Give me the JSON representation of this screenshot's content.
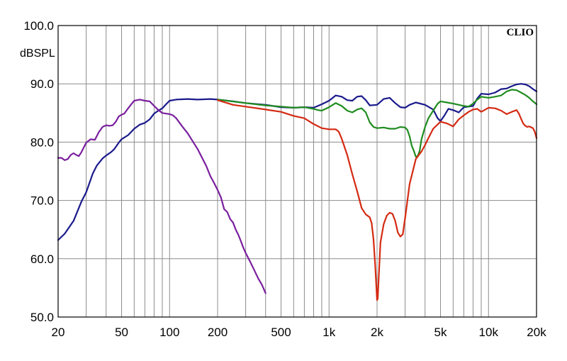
{
  "chart_data": {
    "type": "line",
    "title": "",
    "brand": "CLIO",
    "xlabel": "",
    "ylabel": "dBSPL",
    "x_scale": "log",
    "xlim": [
      20,
      20000
    ],
    "ylim": [
      50,
      100
    ],
    "grid": true,
    "legend": "none",
    "x_ticks": [
      {
        "value": 20,
        "label": "20"
      },
      {
        "value": 50,
        "label": "50"
      },
      {
        "value": 100,
        "label": "100"
      },
      {
        "value": 200,
        "label": "200"
      },
      {
        "value": 500,
        "label": "500"
      },
      {
        "value": 1000,
        "label": "1k"
      },
      {
        "value": 2000,
        "label": "2k"
      },
      {
        "value": 5000,
        "label": "5k"
      },
      {
        "value": 10000,
        "label": "10k"
      },
      {
        "value": 20000,
        "label": "20k"
      }
    ],
    "y_ticks": [
      {
        "value": 50,
        "label": "50.0"
      },
      {
        "value": 60,
        "label": "60.0"
      },
      {
        "value": 70,
        "label": "70.0"
      },
      {
        "value": 80,
        "label": "80.0"
      },
      {
        "value": 90,
        "label": "90.0"
      },
      {
        "value": 100,
        "label": "100.0"
      }
    ],
    "series": [
      {
        "color": "#1a1a8c",
        "points": [
          [
            20,
            63.2
          ],
          [
            22,
            64.3
          ],
          [
            25,
            66.5
          ],
          [
            28,
            69.8
          ],
          [
            30,
            71.4
          ],
          [
            33,
            74.6
          ],
          [
            35,
            76.0
          ],
          [
            38,
            77.2
          ],
          [
            40,
            77.7
          ],
          [
            43,
            78.3
          ],
          [
            45,
            78.8
          ],
          [
            48,
            79.9
          ],
          [
            50,
            80.5
          ],
          [
            55,
            81.2
          ],
          [
            60,
            82.3
          ],
          [
            65,
            83.0
          ],
          [
            70,
            83.3
          ],
          [
            75,
            83.9
          ],
          [
            80,
            84.9
          ],
          [
            85,
            85.4
          ],
          [
            90,
            85.8
          ],
          [
            95,
            86.5
          ],
          [
            100,
            87.1
          ],
          [
            110,
            87.3
          ],
          [
            130,
            87.4
          ],
          [
            150,
            87.3
          ],
          [
            180,
            87.4
          ],
          [
            200,
            87.3
          ],
          [
            250,
            87.0
          ],
          [
            300,
            86.7
          ],
          [
            400,
            86.4
          ],
          [
            500,
            86.0
          ],
          [
            600,
            85.9
          ],
          [
            700,
            86.0
          ],
          [
            800,
            85.9
          ],
          [
            900,
            86.5
          ],
          [
            1000,
            87.1
          ],
          [
            1100,
            88.0
          ],
          [
            1200,
            87.8
          ],
          [
            1300,
            87.2
          ],
          [
            1400,
            87.1
          ],
          [
            1500,
            87.8
          ],
          [
            1600,
            87.9
          ],
          [
            1700,
            87.2
          ],
          [
            1800,
            86.3
          ],
          [
            2000,
            86.4
          ],
          [
            2200,
            87.4
          ],
          [
            2400,
            87.6
          ],
          [
            2600,
            86.7
          ],
          [
            2800,
            86.0
          ],
          [
            3000,
            85.9
          ],
          [
            3200,
            86.4
          ],
          [
            3500,
            86.8
          ],
          [
            4000,
            86.4
          ],
          [
            4500,
            85.6
          ],
          [
            4800,
            84.1
          ],
          [
            5000,
            83.6
          ],
          [
            5300,
            84.6
          ],
          [
            5600,
            85.7
          ],
          [
            6000,
            85.5
          ],
          [
            6500,
            85.1
          ],
          [
            7000,
            86.0
          ],
          [
            8000,
            86.2
          ],
          [
            8500,
            87.5
          ],
          [
            9000,
            88.3
          ],
          [
            10000,
            88.2
          ],
          [
            11000,
            88.5
          ],
          [
            12000,
            89.1
          ],
          [
            13000,
            89.2
          ],
          [
            14000,
            89.6
          ],
          [
            15000,
            89.9
          ],
          [
            16000,
            90.0
          ],
          [
            17000,
            89.9
          ],
          [
            18000,
            89.6
          ],
          [
            19000,
            89.1
          ],
          [
            20000,
            88.7
          ]
        ]
      },
      {
        "color": "#7a1f9e",
        "points": [
          [
            20,
            77.3
          ],
          [
            21,
            77.3
          ],
          [
            22,
            76.9
          ],
          [
            23,
            77.1
          ],
          [
            24,
            77.8
          ],
          [
            25,
            78.1
          ],
          [
            26,
            77.8
          ],
          [
            27,
            77.6
          ],
          [
            28,
            78.3
          ],
          [
            30,
            79.9
          ],
          [
            32,
            80.5
          ],
          [
            34,
            80.4
          ],
          [
            36,
            81.7
          ],
          [
            38,
            82.6
          ],
          [
            40,
            82.9
          ],
          [
            42,
            82.8
          ],
          [
            44,
            82.9
          ],
          [
            46,
            83.5
          ],
          [
            48,
            84.4
          ],
          [
            50,
            84.7
          ],
          [
            52,
            84.9
          ],
          [
            55,
            85.8
          ],
          [
            58,
            86.6
          ],
          [
            60,
            87.1
          ],
          [
            65,
            87.3
          ],
          [
            70,
            87.1
          ],
          [
            75,
            87.0
          ],
          [
            80,
            86.2
          ],
          [
            85,
            85.5
          ],
          [
            90,
            85.0
          ],
          [
            100,
            84.8
          ],
          [
            105,
            84.6
          ],
          [
            110,
            84.1
          ],
          [
            120,
            82.7
          ],
          [
            130,
            81.5
          ],
          [
            140,
            80.1
          ],
          [
            150,
            78.8
          ],
          [
            160,
            77.3
          ],
          [
            170,
            75.9
          ],
          [
            180,
            74.2
          ],
          [
            190,
            73.0
          ],
          [
            200,
            71.8
          ],
          [
            210,
            70.5
          ],
          [
            220,
            68.5
          ],
          [
            230,
            68.0
          ],
          [
            240,
            66.8
          ],
          [
            250,
            66.2
          ],
          [
            260,
            65.0
          ],
          [
            270,
            64.1
          ],
          [
            280,
            63.0
          ],
          [
            290,
            61.9
          ],
          [
            300,
            61.0
          ],
          [
            320,
            59.5
          ],
          [
            340,
            58.0
          ],
          [
            360,
            56.6
          ],
          [
            380,
            55.5
          ],
          [
            400,
            54.1
          ]
        ]
      },
      {
        "color": "#1f8c1f",
        "points": [
          [
            200,
            87.3
          ],
          [
            300,
            86.7
          ],
          [
            400,
            86.3
          ],
          [
            500,
            86.1
          ],
          [
            600,
            85.9
          ],
          [
            700,
            86.0
          ],
          [
            800,
            85.7
          ],
          [
            850,
            85.5
          ],
          [
            900,
            85.4
          ],
          [
            1000,
            86.0
          ],
          [
            1100,
            86.7
          ],
          [
            1200,
            86.2
          ],
          [
            1300,
            85.4
          ],
          [
            1400,
            85.1
          ],
          [
            1500,
            85.6
          ],
          [
            1600,
            85.8
          ],
          [
            1700,
            85.1
          ],
          [
            1800,
            83.4
          ],
          [
            1900,
            82.6
          ],
          [
            2000,
            82.4
          ],
          [
            2200,
            82.5
          ],
          [
            2400,
            82.3
          ],
          [
            2600,
            82.3
          ],
          [
            2800,
            82.6
          ],
          [
            3000,
            82.5
          ],
          [
            3100,
            82.1
          ],
          [
            3200,
            81.0
          ],
          [
            3300,
            79.4
          ],
          [
            3400,
            78.5
          ],
          [
            3500,
            77.5
          ],
          [
            3600,
            77.6
          ],
          [
            3700,
            78.5
          ],
          [
            3800,
            80.5
          ],
          [
            4000,
            82.6
          ],
          [
            4200,
            84.1
          ],
          [
            4500,
            85.4
          ],
          [
            4800,
            86.6
          ],
          [
            5000,
            87.0
          ],
          [
            5500,
            86.8
          ],
          [
            6000,
            86.6
          ],
          [
            6500,
            86.4
          ],
          [
            7000,
            86.2
          ],
          [
            7500,
            86.1
          ],
          [
            8000,
            86.6
          ],
          [
            8500,
            87.3
          ],
          [
            9000,
            87.8
          ],
          [
            10000,
            87.6
          ],
          [
            11000,
            87.8
          ],
          [
            12000,
            88.0
          ],
          [
            13000,
            88.7
          ],
          [
            14000,
            89.0
          ],
          [
            15000,
            88.9
          ],
          [
            16000,
            88.5
          ],
          [
            17000,
            88.1
          ],
          [
            18000,
            87.6
          ],
          [
            19000,
            87.0
          ],
          [
            20000,
            86.5
          ]
        ]
      },
      {
        "color": "#d42a12",
        "points": [
          [
            200,
            87.2
          ],
          [
            250,
            86.4
          ],
          [
            300,
            86.1
          ],
          [
            400,
            85.6
          ],
          [
            500,
            85.2
          ],
          [
            600,
            84.5
          ],
          [
            700,
            84.1
          ],
          [
            800,
            83.1
          ],
          [
            900,
            82.4
          ],
          [
            1000,
            82.2
          ],
          [
            1100,
            82.2
          ],
          [
            1150,
            81.8
          ],
          [
            1200,
            80.6
          ],
          [
            1300,
            77.8
          ],
          [
            1400,
            74.5
          ],
          [
            1500,
            71.6
          ],
          [
            1600,
            68.7
          ],
          [
            1700,
            67.6
          ],
          [
            1800,
            67.1
          ],
          [
            1850,
            66.1
          ],
          [
            1900,
            63.3
          ],
          [
            1950,
            58.6
          ],
          [
            2000,
            52.9
          ],
          [
            2020,
            53.2
          ],
          [
            2050,
            56.9
          ],
          [
            2100,
            62.8
          ],
          [
            2200,
            65.9
          ],
          [
            2300,
            67.4
          ],
          [
            2400,
            67.9
          ],
          [
            2500,
            67.7
          ],
          [
            2600,
            66.5
          ],
          [
            2700,
            64.5
          ],
          [
            2800,
            63.8
          ],
          [
            2900,
            64.2
          ],
          [
            3000,
            67.0
          ],
          [
            3200,
            72.8
          ],
          [
            3500,
            77.1
          ],
          [
            3800,
            78.4
          ],
          [
            4000,
            79.5
          ],
          [
            4200,
            80.7
          ],
          [
            4500,
            82.3
          ],
          [
            5000,
            83.5
          ],
          [
            5500,
            83.2
          ],
          [
            6000,
            82.7
          ],
          [
            6500,
            83.9
          ],
          [
            7000,
            84.6
          ],
          [
            7500,
            85.2
          ],
          [
            8000,
            85.6
          ],
          [
            8500,
            85.7
          ],
          [
            9000,
            85.2
          ],
          [
            10000,
            85.9
          ],
          [
            11000,
            85.8
          ],
          [
            12000,
            85.4
          ],
          [
            13000,
            84.8
          ],
          [
            14000,
            85.2
          ],
          [
            15000,
            85.5
          ],
          [
            15500,
            84.9
          ],
          [
            16000,
            84.0
          ],
          [
            16500,
            83.2
          ],
          [
            17000,
            82.8
          ],
          [
            17500,
            82.6
          ],
          [
            18000,
            82.7
          ],
          [
            19000,
            82.4
          ],
          [
            19500,
            81.8
          ],
          [
            20000,
            80.7
          ]
        ]
      }
    ]
  }
}
